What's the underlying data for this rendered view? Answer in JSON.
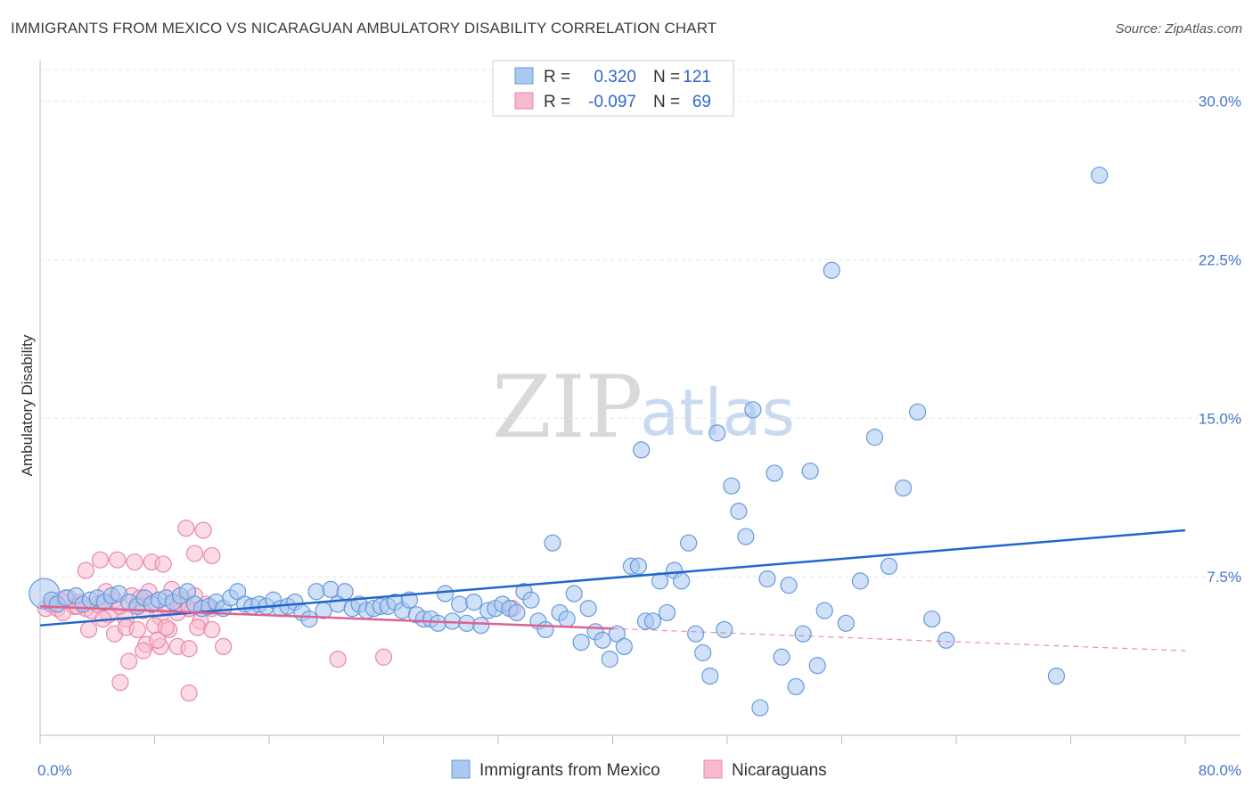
{
  "chart_data": {
    "type": "scatter",
    "title": "IMMIGRANTS FROM MEXICO VS NICARAGUAN AMBULATORY DISABILITY CORRELATION CHART",
    "source": "Source: ZipAtlas.com",
    "ylabel": "Ambulatory Disability",
    "xlim": [
      0,
      80
    ],
    "ylim": [
      0,
      31.5
    ],
    "x_tick_labels": [
      "0.0%",
      "80.0%"
    ],
    "y_ticks": [
      7.5,
      15.0,
      22.5,
      30.0
    ],
    "y_tick_labels": [
      "7.5%",
      "15.0%",
      "22.5%",
      "30.0%"
    ],
    "grid": true,
    "watermark": {
      "zip": "ZIP",
      "atlas": "atlas"
    },
    "legend": {
      "rows": [
        {
          "r_label": "R =",
          "r_value": "0.320",
          "n_label": "N =",
          "n_value": "121"
        },
        {
          "r_label": "R =",
          "r_value": "-0.097",
          "n_label": "N =",
          "n_value": "69"
        }
      ]
    },
    "series": [
      {
        "name": "Immigrants from Mexico",
        "color": "#6699dd",
        "fill": "#aac8f0",
        "line_color": "#2266cc",
        "trend": {
          "x0": 0,
          "y0": 5.2,
          "x1": 80,
          "y1": 9.7,
          "solid_until": 80
        },
        "points": [
          [
            0.3,
            6.7
          ],
          [
            0.8,
            6.4
          ],
          [
            1.2,
            6.2
          ],
          [
            1.8,
            6.5
          ],
          [
            2.5,
            6.6
          ],
          [
            3.0,
            6.2
          ],
          [
            3.5,
            6.4
          ],
          [
            4.0,
            6.5
          ],
          [
            4.5,
            6.3
          ],
          [
            5.0,
            6.6
          ],
          [
            5.5,
            6.7
          ],
          [
            6.2,
            6.3
          ],
          [
            6.8,
            6.1
          ],
          [
            7.3,
            6.5
          ],
          [
            7.8,
            6.2
          ],
          [
            8.3,
            6.4
          ],
          [
            8.8,
            6.5
          ],
          [
            9.3,
            6.3
          ],
          [
            9.8,
            6.6
          ],
          [
            10.3,
            6.8
          ],
          [
            10.8,
            6.2
          ],
          [
            11.3,
            6.0
          ],
          [
            11.8,
            6.1
          ],
          [
            12.3,
            6.3
          ],
          [
            12.8,
            6.0
          ],
          [
            13.3,
            6.5
          ],
          [
            13.8,
            6.8
          ],
          [
            14.3,
            6.2
          ],
          [
            14.8,
            6.1
          ],
          [
            15.3,
            6.2
          ],
          [
            15.8,
            6.1
          ],
          [
            16.3,
            6.4
          ],
          [
            16.8,
            6.0
          ],
          [
            17.3,
            6.1
          ],
          [
            17.8,
            6.3
          ],
          [
            18.3,
            5.8
          ],
          [
            18.8,
            5.5
          ],
          [
            19.3,
            6.8
          ],
          [
            19.8,
            5.9
          ],
          [
            20.3,
            6.9
          ],
          [
            20.8,
            6.2
          ],
          [
            21.3,
            6.8
          ],
          [
            21.8,
            6.0
          ],
          [
            22.3,
            6.2
          ],
          [
            22.8,
            5.9
          ],
          [
            23.3,
            6.0
          ],
          [
            23.8,
            6.1
          ],
          [
            24.3,
            6.1
          ],
          [
            24.8,
            6.3
          ],
          [
            25.3,
            5.9
          ],
          [
            25.8,
            6.4
          ],
          [
            26.3,
            5.7
          ],
          [
            26.8,
            5.5
          ],
          [
            27.3,
            5.5
          ],
          [
            27.8,
            5.3
          ],
          [
            28.3,
            6.7
          ],
          [
            28.8,
            5.4
          ],
          [
            29.3,
            6.2
          ],
          [
            29.8,
            5.3
          ],
          [
            30.3,
            6.3
          ],
          [
            30.8,
            5.2
          ],
          [
            31.3,
            5.9
          ],
          [
            31.8,
            6.0
          ],
          [
            32.3,
            6.2
          ],
          [
            32.8,
            6.0
          ],
          [
            33.3,
            5.8
          ],
          [
            33.8,
            6.8
          ],
          [
            34.3,
            6.4
          ],
          [
            34.8,
            5.4
          ],
          [
            35.3,
            5.0
          ],
          [
            35.8,
            9.1
          ],
          [
            36.3,
            5.8
          ],
          [
            36.8,
            5.5
          ],
          [
            37.3,
            6.7
          ],
          [
            37.8,
            4.4
          ],
          [
            38.3,
            6.0
          ],
          [
            38.8,
            4.9
          ],
          [
            39.3,
            4.5
          ],
          [
            39.8,
            3.6
          ],
          [
            40.3,
            4.8
          ],
          [
            40.8,
            4.2
          ],
          [
            41.3,
            8.0
          ],
          [
            41.8,
            8.0
          ],
          [
            42.3,
            5.4
          ],
          [
            42.8,
            5.4
          ],
          [
            43.3,
            7.3
          ],
          [
            43.8,
            5.8
          ],
          [
            44.3,
            7.8
          ],
          [
            44.8,
            7.3
          ],
          [
            45.3,
            9.1
          ],
          [
            45.8,
            4.8
          ],
          [
            46.3,
            3.9
          ],
          [
            46.8,
            2.8
          ],
          [
            47.3,
            14.3
          ],
          [
            47.8,
            5.0
          ],
          [
            48.3,
            11.8
          ],
          [
            48.8,
            10.6
          ],
          [
            49.3,
            9.4
          ],
          [
            49.8,
            15.4
          ],
          [
            50.3,
            1.3
          ],
          [
            50.8,
            7.4
          ],
          [
            51.3,
            12.4
          ],
          [
            51.8,
            3.7
          ],
          [
            52.3,
            7.1
          ],
          [
            52.8,
            2.3
          ],
          [
            53.3,
            4.8
          ],
          [
            53.8,
            12.5
          ],
          [
            54.3,
            3.3
          ],
          [
            54.8,
            5.9
          ],
          [
            55.3,
            22.0
          ],
          [
            56.3,
            5.3
          ],
          [
            57.3,
            7.3
          ],
          [
            58.3,
            14.1
          ],
          [
            59.3,
            8.0
          ],
          [
            60.3,
            11.7
          ],
          [
            61.3,
            15.3
          ],
          [
            62.3,
            5.5
          ],
          [
            63.3,
            4.5
          ],
          [
            71.0,
            2.8
          ],
          [
            74.0,
            26.5
          ],
          [
            42.0,
            13.5
          ]
        ]
      },
      {
        "name": "Nicaraguans",
        "color": "#e888aa",
        "fill": "#f7b9cf",
        "line_color": "#e06090",
        "trend": {
          "x0": 0,
          "y0": 6.1,
          "x1": 80,
          "y1": 4.0,
          "solid_until": 40
        },
        "points": [
          [
            0.4,
            6.0
          ],
          [
            0.8,
            6.2
          ],
          [
            1.2,
            6.0
          ],
          [
            1.6,
            5.8
          ],
          [
            2.0,
            6.5
          ],
          [
            2.4,
            6.1
          ],
          [
            2.8,
            6.3
          ],
          [
            3.2,
            6.0
          ],
          [
            3.6,
            5.9
          ],
          [
            4.0,
            6.2
          ],
          [
            4.4,
            6.3
          ],
          [
            4.8,
            5.7
          ],
          [
            5.2,
            6.4
          ],
          [
            5.6,
            6.1
          ],
          [
            6.0,
            5.5
          ],
          [
            6.4,
            6.6
          ],
          [
            6.8,
            6.2
          ],
          [
            7.2,
            5.9
          ],
          [
            7.6,
            6.8
          ],
          [
            8.0,
            6.3
          ],
          [
            8.4,
            5.6
          ],
          [
            8.8,
            6.1
          ],
          [
            9.2,
            6.9
          ],
          [
            9.6,
            5.8
          ],
          [
            10.0,
            6.4
          ],
          [
            10.4,
            6.0
          ],
          [
            10.8,
            6.6
          ],
          [
            11.2,
            5.4
          ],
          [
            11.6,
            6.2
          ],
          [
            12.0,
            6.0
          ],
          [
            3.2,
            7.8
          ],
          [
            4.2,
            8.3
          ],
          [
            5.4,
            8.3
          ],
          [
            6.6,
            8.2
          ],
          [
            7.8,
            8.2
          ],
          [
            8.6,
            8.1
          ],
          [
            10.2,
            9.8
          ],
          [
            10.8,
            8.6
          ],
          [
            11.4,
            9.7
          ],
          [
            12.0,
            8.5
          ],
          [
            3.4,
            5.0
          ],
          [
            4.4,
            5.5
          ],
          [
            5.2,
            4.8
          ],
          [
            6.0,
            5.1
          ],
          [
            6.8,
            5.0
          ],
          [
            7.4,
            4.3
          ],
          [
            8.0,
            5.2
          ],
          [
            8.4,
            4.2
          ],
          [
            9.0,
            5.0
          ],
          [
            9.6,
            4.2
          ],
          [
            10.4,
            4.1
          ],
          [
            11.0,
            5.1
          ],
          [
            12.0,
            5.0
          ],
          [
            12.8,
            4.2
          ],
          [
            5.6,
            2.5
          ],
          [
            10.4,
            2.0
          ],
          [
            6.2,
            3.5
          ],
          [
            7.2,
            4.0
          ],
          [
            8.2,
            4.5
          ],
          [
            8.8,
            5.1
          ],
          [
            9.6,
            6.2
          ],
          [
            10.4,
            6.0
          ],
          [
            2.6,
            6.1
          ],
          [
            1.4,
            6.4
          ],
          [
            4.6,
            6.8
          ],
          [
            7.0,
            6.5
          ],
          [
            20.8,
            3.6
          ],
          [
            24.0,
            3.7
          ],
          [
            33.0,
            6.0
          ]
        ]
      }
    ]
  }
}
